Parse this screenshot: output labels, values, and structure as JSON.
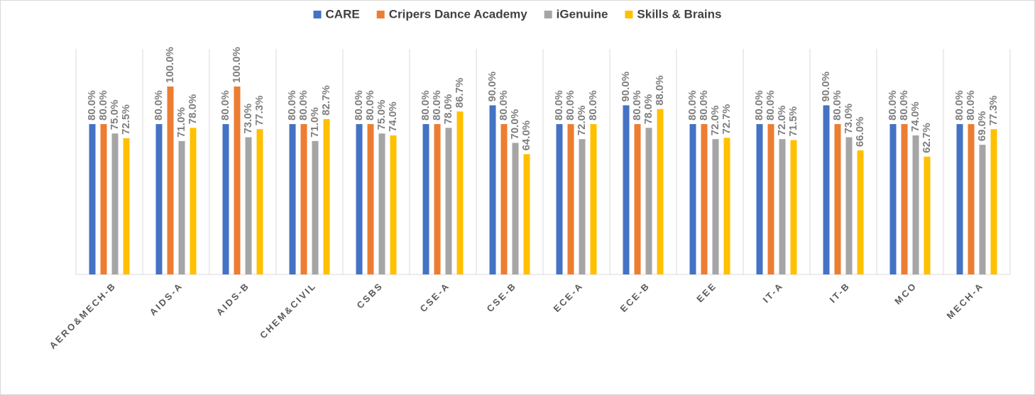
{
  "chart_data": {
    "type": "bar",
    "categories": [
      "AERO&MECH-B",
      "AIDS-A",
      "AIDS-B",
      "CHEM&CIVIL",
      "CSBS",
      "CSE-A",
      "CSE-B",
      "ECE-A",
      "ECE-B",
      "EEE",
      "IT-A",
      "IT-B",
      "MCO",
      "MECH-A"
    ],
    "series": [
      {
        "name": "CARE",
        "color": "#4472c4",
        "values": [
          80,
          80,
          80,
          80,
          80,
          80,
          90,
          80,
          90,
          80,
          80,
          90,
          80,
          80
        ],
        "value_labels": [
          "80.0%",
          "80.0%",
          "80.0%",
          "80.0%",
          "80.0%",
          "80.0%",
          "90.0%",
          "80.0%",
          "90.0%",
          "80.0%",
          "80.0%",
          "90.0%",
          "80.0%",
          "80.0%"
        ]
      },
      {
        "name": "Cripers Dance Academy",
        "color": "#ed7d31",
        "values": [
          80,
          100,
          100,
          80,
          80,
          80,
          80,
          80,
          80,
          80,
          80,
          80,
          80,
          80
        ],
        "value_labels": [
          "80.0%",
          "100.0%",
          "100.0%",
          "80.0%",
          "80.0%",
          "80.0%",
          "80.0%",
          "80.0%",
          "80.0%",
          "80.0%",
          "80.0%",
          "80.0%",
          "80.0%",
          "80.0%"
        ]
      },
      {
        "name": "iGenuine",
        "color": "#a5a5a5",
        "values": [
          75,
          71,
          73,
          71,
          75,
          78,
          70,
          72,
          78,
          72,
          72,
          73,
          74,
          69
        ],
        "value_labels": [
          "75.0%",
          "71.0%",
          "73.0%",
          "71.0%",
          "75.0%",
          "78.0%",
          "70.0%",
          "72.0%",
          "78.0%",
          "72.0%",
          "72.0%",
          "73.0%",
          "74.0%",
          "69.0%"
        ]
      },
      {
        "name": "Skills & Brains",
        "color": "#ffc000",
        "values": [
          72.5,
          78,
          77.3,
          82.7,
          74,
          86.7,
          64,
          80,
          88,
          72.7,
          71.5,
          66,
          62.7,
          77.3
        ],
        "value_labels": [
          "72.5%",
          "78.0%",
          "77.3%",
          "82.7%",
          "74.0%",
          "86.7%",
          "64.0%",
          "80.0%",
          "88.0%",
          "72.7%",
          "71.5%",
          "66.0%",
          "62.7%",
          "77.3%"
        ]
      }
    ],
    "ylim": [
      0,
      120
    ]
  }
}
